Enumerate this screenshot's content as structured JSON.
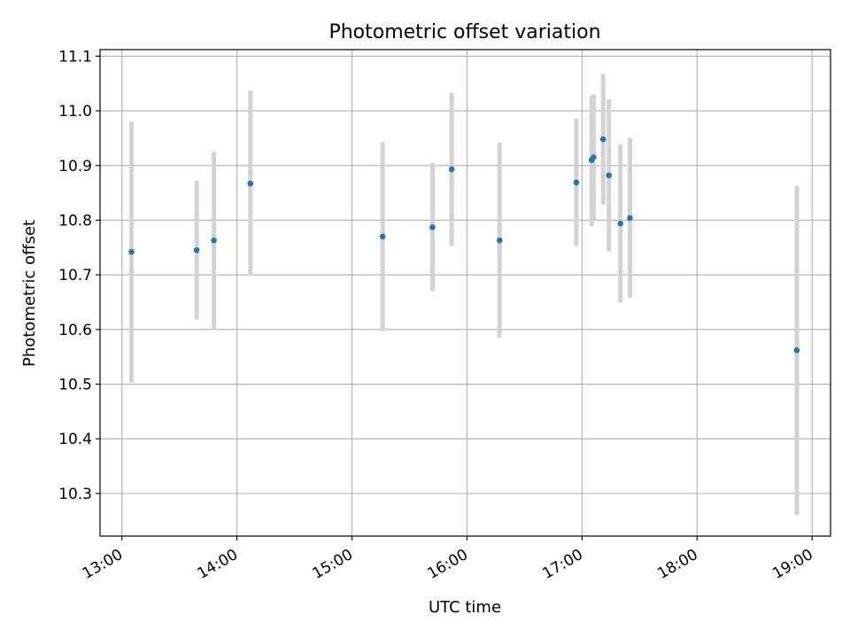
{
  "chart_data": {
    "type": "scatter",
    "title": "Photometric offset variation",
    "xlabel": "UTC time",
    "ylabel": "Photometric offset",
    "x_unit": "hours UTC",
    "xlim": [
      12.81,
      19.16
    ],
    "ylim": [
      10.222,
      11.112
    ],
    "xticks": [
      {
        "value": 13,
        "label": "13:00"
      },
      {
        "value": 14,
        "label": "14:00"
      },
      {
        "value": 15,
        "label": "15:00"
      },
      {
        "value": 16,
        "label": "16:00"
      },
      {
        "value": 17,
        "label": "17:00"
      },
      {
        "value": 18,
        "label": "18:00"
      },
      {
        "value": 19,
        "label": "19:00"
      }
    ],
    "yticks": [
      {
        "value": 10.3,
        "label": "10.3"
      },
      {
        "value": 10.4,
        "label": "10.4"
      },
      {
        "value": 10.5,
        "label": "10.5"
      },
      {
        "value": 10.6,
        "label": "10.6"
      },
      {
        "value": 10.7,
        "label": "10.7"
      },
      {
        "value": 10.8,
        "label": "10.8"
      },
      {
        "value": 10.9,
        "label": "10.9"
      },
      {
        "value": 11.0,
        "label": "11.0"
      },
      {
        "value": 11.1,
        "label": "11.1"
      }
    ],
    "grid": true,
    "marker_color": "#1f77b4",
    "errorbar_color": "#d3d3d3",
    "points": [
      {
        "x": "13:05",
        "y": 10.742,
        "lo": 10.503,
        "hi": 10.98
      },
      {
        "x": "13:39",
        "y": 10.745,
        "lo": 10.618,
        "hi": 10.872
      },
      {
        "x": "13:48",
        "y": 10.763,
        "lo": 10.6,
        "hi": 10.925
      },
      {
        "x": "14:07",
        "y": 10.867,
        "lo": 10.698,
        "hi": 11.037
      },
      {
        "x": "15:16",
        "y": 10.77,
        "lo": 10.597,
        "hi": 10.943
      },
      {
        "x": "15:42",
        "y": 10.787,
        "lo": 10.67,
        "hi": 10.905
      },
      {
        "x": "15:52",
        "y": 10.893,
        "lo": 10.753,
        "hi": 11.033
      },
      {
        "x": "16:17",
        "y": 10.763,
        "lo": 10.585,
        "hi": 10.942
      },
      {
        "x": "16:57",
        "y": 10.869,
        "lo": 10.753,
        "hi": 10.986
      },
      {
        "x": "17:05",
        "y": 10.91,
        "lo": 10.789,
        "hi": 11.027
      },
      {
        "x": "17:06",
        "y": 10.915,
        "lo": 10.8,
        "hi": 11.03
      },
      {
        "x": "17:11",
        "y": 10.948,
        "lo": 10.828,
        "hi": 11.068
      },
      {
        "x": "17:14",
        "y": 10.882,
        "lo": 10.743,
        "hi": 11.021
      },
      {
        "x": "17:20",
        "y": 10.794,
        "lo": 10.649,
        "hi": 10.939
      },
      {
        "x": "17:25",
        "y": 10.804,
        "lo": 10.658,
        "hi": 10.951
      },
      {
        "x": "18:52",
        "y": 10.562,
        "lo": 10.26,
        "hi": 10.863
      }
    ]
  }
}
